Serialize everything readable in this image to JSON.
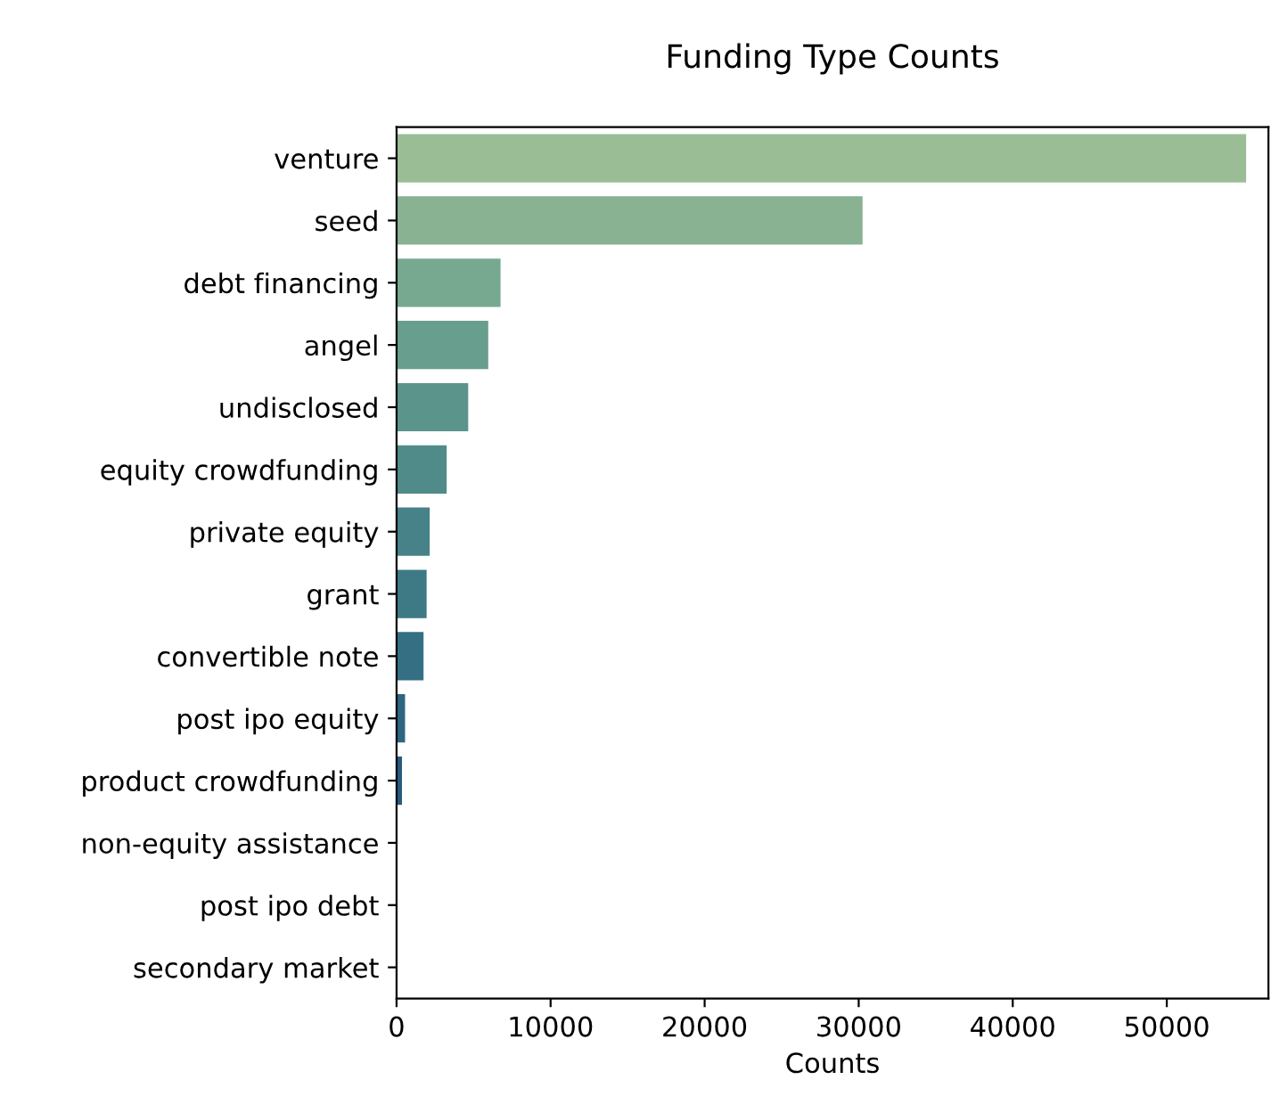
{
  "chart_data": {
    "type": "bar",
    "orientation": "horizontal",
    "title": "Funding Type Counts",
    "xlabel": "Counts",
    "categories": [
      "venture",
      "seed",
      "debt financing",
      "angel",
      "undisclosed",
      "equity crowdfunding",
      "private equity",
      "grant",
      "convertible note",
      "post ipo equity",
      "product crowdfunding",
      "non-equity assistance",
      "post ipo debt",
      "secondary market"
    ],
    "values": [
      55200,
      30300,
      6800,
      6000,
      4700,
      3300,
      2200,
      2000,
      1800,
      600,
      400,
      null,
      null,
      null
    ],
    "colors": [
      "#9abd96",
      "#88b292",
      "#77a890",
      "#679e8d",
      "#5b948b",
      "#508b89",
      "#468288",
      "#3e7986",
      "#356f84",
      "#2e6582",
      "#285b80",
      "#25517d",
      "#23477a",
      "#223d77"
    ],
    "xlim": [
      0,
      56600
    ],
    "xticks": [
      0,
      10000,
      20000,
      30000,
      40000,
      50000
    ],
    "grid": false
  }
}
